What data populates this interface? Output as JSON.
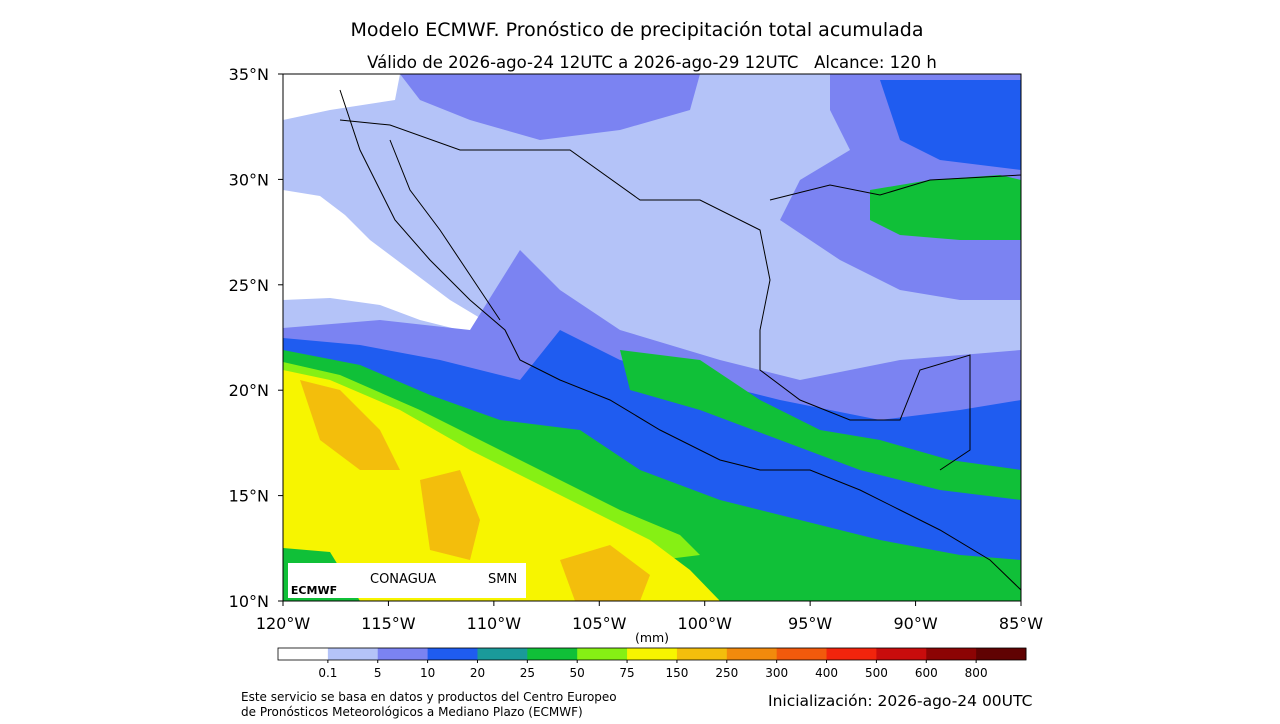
{
  "title": "Modelo ECMWF. Pronóstico de precipitación total acumulada",
  "subtitle": "Válido de 2026-ago-24 12UTC a 2026-ago-29 12UTC   Alcance: 120 h",
  "map": {
    "lonlim": [
      -120,
      -85
    ],
    "latlim": [
      10,
      35
    ],
    "lonticks": [
      {
        "value": -120,
        "label": "120°W"
      },
      {
        "value": -115,
        "label": "115°W"
      },
      {
        "value": -110,
        "label": "110°W"
      },
      {
        "value": -105,
        "label": "105°W"
      },
      {
        "value": -100,
        "label": "100°W"
      },
      {
        "value": -95,
        "label": "95°W"
      },
      {
        "value": -90,
        "label": "90°W"
      },
      {
        "value": -85,
        "label": "85°W"
      }
    ],
    "latticks": [
      {
        "value": 35,
        "label": "35°N"
      },
      {
        "value": 30,
        "label": "30°N"
      },
      {
        "value": 25,
        "label": "25°N"
      },
      {
        "value": 20,
        "label": "20°N"
      },
      {
        "value": 15,
        "label": "15°N"
      },
      {
        "value": 10,
        "label": "10°N"
      }
    ]
  },
  "colorbar": {
    "unit_label": "(mm)",
    "ticks": [
      0.1,
      5,
      10,
      20,
      25,
      50,
      75,
      150,
      250,
      300,
      400,
      500,
      600,
      800
    ],
    "colors": [
      "#ffffff",
      "#b4c3f8",
      "#7b83f2",
      "#1f5cf0",
      "#1a9a9a",
      "#10c038",
      "#86f014",
      "#f7f500",
      "#f3be0c",
      "#f28a0c",
      "#f25a0c",
      "#f2240c",
      "#c80c0c",
      "#8c0404",
      "#600202"
    ]
  },
  "logos": [
    "ECMWF",
    "CONAGUA",
    "SMN"
  ],
  "footer": {
    "credit_lines": [
      "Este servicio se basa en datos y productos del Centro Europeo",
      "de Pronósticos Meteorológicos a Mediano Plazo (ECMWF)"
    ],
    "init": "Inicialización: 2026-ago-24 00UTC"
  }
}
